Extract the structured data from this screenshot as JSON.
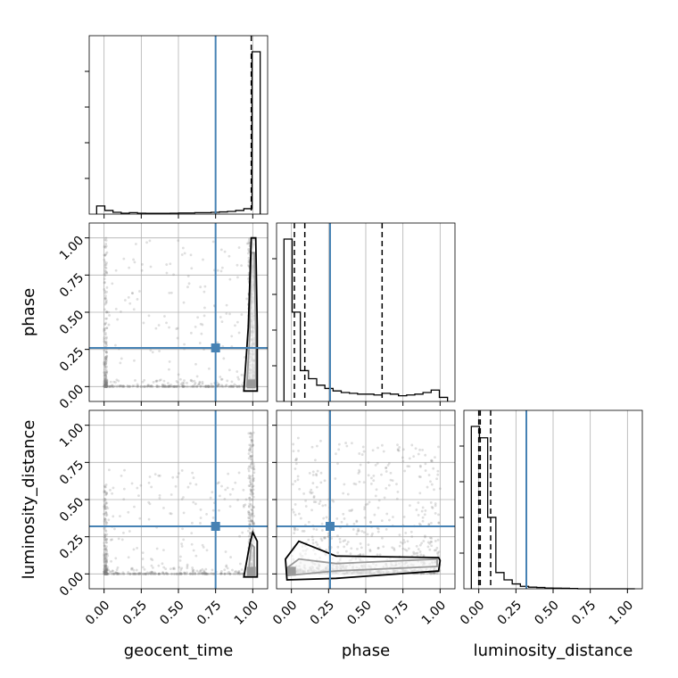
{
  "chart_data": {
    "type": "corner",
    "parameters": [
      "geocent_time",
      "phase",
      "luminosity_distance"
    ],
    "axis_labels": {
      "geocent_time": "geocent_time",
      "phase": "phase",
      "luminosity_distance": "luminosity_distance"
    },
    "ticks": [
      0.0,
      0.25,
      0.5,
      0.75,
      1.0
    ],
    "tick_labels": [
      "0.00",
      "0.25",
      "0.50",
      "0.75",
      "1.00"
    ],
    "axis_range": [
      -0.1,
      1.1
    ],
    "grid": true,
    "colors": {
      "truth": "#4682b4",
      "hist": "#000000",
      "points": "#808080"
    },
    "truths": {
      "geocent_time": 0.75,
      "phase": 0.26,
      "luminosity_distance": 0.32
    },
    "quantiles": {
      "geocent_time": [
        0.99
      ],
      "phase": [
        0.02,
        0.09,
        0.61
      ],
      "luminosity_distance": [
        0.0,
        0.01,
        0.08
      ]
    },
    "histograms": {
      "geocent_time": {
        "xrange": [
          -0.05,
          1.05
        ],
        "bins": 20,
        "counts": [
          0.045,
          0.02,
          0.01,
          0.005,
          0.008,
          0.005,
          0.004,
          0.004,
          0.004,
          0.005,
          0.006,
          0.006,
          0.008,
          0.008,
          0.01,
          0.012,
          0.015,
          0.02,
          0.03,
          0.9
        ]
      },
      "phase": {
        "xrange": [
          -0.05,
          1.05
        ],
        "bins": 20,
        "counts": [
          1.0,
          0.55,
          0.19,
          0.14,
          0.1,
          0.08,
          0.065,
          0.055,
          0.05,
          0.045,
          0.045,
          0.04,
          0.05,
          0.045,
          0.035,
          0.04,
          0.045,
          0.055,
          0.07,
          0.025
        ]
      },
      "luminosity_distance": {
        "xrange": [
          -0.05,
          1.05
        ],
        "bins": 20,
        "counts": [
          1.0,
          0.93,
          0.44,
          0.1,
          0.055,
          0.03,
          0.015,
          0.01,
          0.008,
          0.005,
          0.004,
          0.003,
          0.002,
          0.0,
          0.0,
          0.0,
          0.0,
          0.0,
          0.0,
          0.0
        ]
      }
    },
    "contours": {
      "phase_vs_geocent_time": [
        {
          "level": "inner",
          "points": [
            [
              0.96,
              0.0
            ],
            [
              1.02,
              0.0
            ],
            [
              1.02,
              0.35
            ],
            [
              1.01,
              0.9
            ],
            [
              0.99,
              0.9
            ],
            [
              0.98,
              0.35
            ]
          ]
        },
        {
          "level": "outer",
          "points": [
            [
              0.94,
              -0.03
            ],
            [
              1.03,
              -0.03
            ],
            [
              1.03,
              0.4
            ],
            [
              1.02,
              1.0
            ],
            [
              0.99,
              1.0
            ],
            [
              0.97,
              0.4
            ]
          ]
        }
      ],
      "luminosity_distance_vs_geocent_time": [
        {
          "level": "inner",
          "points": [
            [
              0.97,
              0.0
            ],
            [
              1.01,
              0.0
            ],
            [
              1.01,
              0.18
            ],
            [
              0.99,
              0.2
            ]
          ]
        },
        {
          "level": "outer",
          "points": [
            [
              0.94,
              -0.02
            ],
            [
              1.03,
              -0.02
            ],
            [
              1.03,
              0.22
            ],
            [
              1.0,
              0.28
            ],
            [
              0.98,
              0.2
            ]
          ]
        }
      ],
      "luminosity_distance_vs_phase": [
        {
          "level": "inner",
          "points": [
            [
              -0.02,
              -0.01
            ],
            [
              0.3,
              0.02
            ],
            [
              0.98,
              0.05
            ],
            [
              0.98,
              0.1
            ],
            [
              0.3,
              0.07
            ],
            [
              0.05,
              0.1
            ],
            [
              -0.03,
              0.04
            ]
          ]
        },
        {
          "level": "outer",
          "points": [
            [
              -0.03,
              -0.04
            ],
            [
              0.3,
              -0.03
            ],
            [
              0.99,
              0.02
            ],
            [
              1.0,
              0.09
            ],
            [
              0.99,
              0.11
            ],
            [
              0.3,
              0.12
            ],
            [
              0.05,
              0.22
            ],
            [
              -0.04,
              0.1
            ]
          ]
        }
      ]
    }
  }
}
